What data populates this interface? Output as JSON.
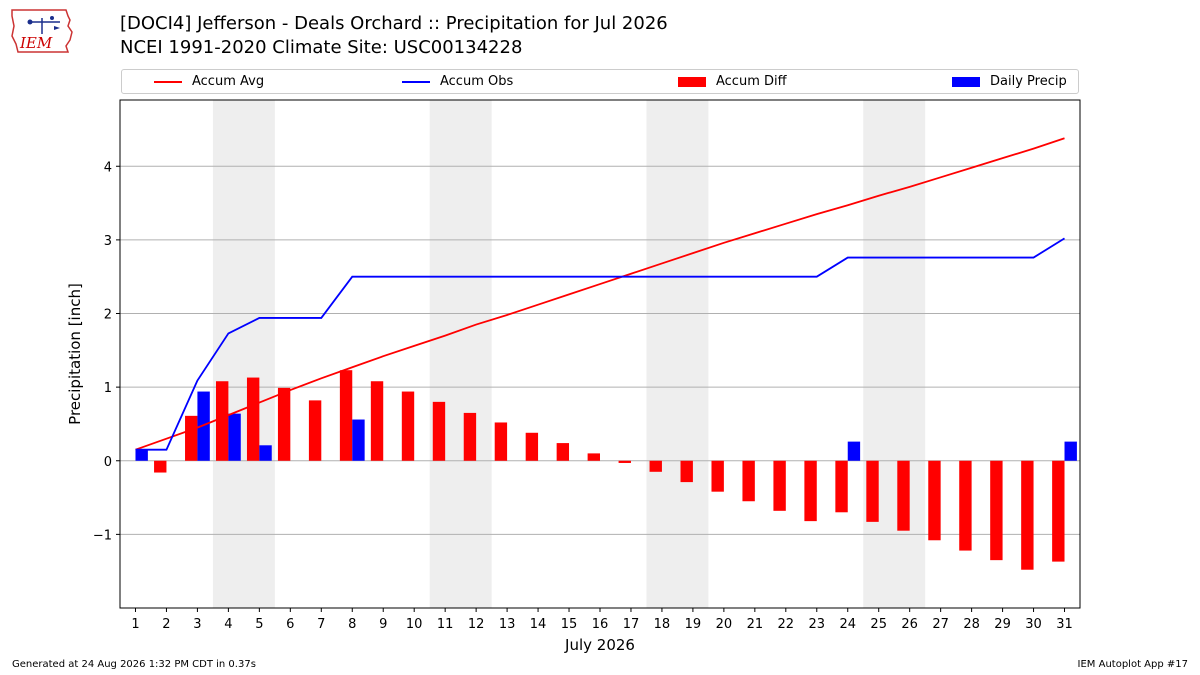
{
  "header": {
    "title_line1": "[DOCI4] Jefferson - Deals Orchard :: Precipitation for Jul 2026",
    "title_line2": "NCEI 1991-2020 Climate Site: USC00134228",
    "logo_text": "IEM"
  },
  "legend": {
    "placement": "top",
    "items": [
      {
        "label": "Accum Avg",
        "kind": "line",
        "color": "#ff0000"
      },
      {
        "label": "Accum Obs",
        "kind": "line",
        "color": "#0000ff"
      },
      {
        "label": "Accum Diff",
        "kind": "bar",
        "color": "#ff0000"
      },
      {
        "label": "Daily Precip",
        "kind": "bar",
        "color": "#0000ff"
      }
    ]
  },
  "chart_data": {
    "type": "bar",
    "xlabel": "July 2026",
    "ylabel": "Precipitation [inch]",
    "x": [
      1,
      2,
      3,
      4,
      5,
      6,
      7,
      8,
      9,
      10,
      11,
      12,
      13,
      14,
      15,
      16,
      17,
      18,
      19,
      20,
      21,
      22,
      23,
      24,
      25,
      26,
      27,
      28,
      29,
      30,
      31
    ],
    "xlim": [
      0.5,
      31.5
    ],
    "ylim": [
      -2.0,
      4.9
    ],
    "yticks": [
      -1,
      0,
      1,
      2,
      3,
      4
    ],
    "ytick_labels": [
      "−1",
      "0",
      "1",
      "2",
      "3",
      "4"
    ],
    "grid": true,
    "weekend_bands": [
      [
        3.5,
        5.5
      ],
      [
        10.5,
        12.5
      ],
      [
        17.5,
        19.5
      ],
      [
        24.5,
        26.5
      ]
    ],
    "series": [
      {
        "name": "Accum Avg",
        "type": "line",
        "color": "#ff0000",
        "values": [
          0.15,
          0.3,
          0.45,
          0.62,
          0.79,
          0.96,
          1.12,
          1.27,
          1.42,
          1.56,
          1.7,
          1.85,
          1.98,
          2.12,
          2.26,
          2.4,
          2.54,
          2.68,
          2.82,
          2.96,
          3.09,
          3.22,
          3.35,
          3.47,
          3.6,
          3.72,
          3.85,
          3.98,
          4.11,
          4.24,
          4.38
        ]
      },
      {
        "name": "Accum Obs",
        "type": "line",
        "color": "#0000ff",
        "values": [
          0.15,
          0.15,
          1.09,
          1.73,
          1.94,
          1.94,
          1.94,
          2.5,
          2.5,
          2.5,
          2.5,
          2.5,
          2.5,
          2.5,
          2.5,
          2.5,
          2.5,
          2.5,
          2.5,
          2.5,
          2.5,
          2.5,
          2.5,
          2.76,
          2.76,
          2.76,
          2.76,
          2.76,
          2.76,
          2.76,
          3.02
        ]
      },
      {
        "name": "Accum Diff",
        "type": "bar",
        "color": "#ff0000",
        "values": [
          0.0,
          -0.16,
          0.61,
          1.08,
          1.13,
          0.99,
          0.82,
          1.23,
          1.08,
          0.94,
          0.8,
          0.65,
          0.52,
          0.38,
          0.24,
          0.1,
          -0.03,
          -0.15,
          -0.29,
          -0.42,
          -0.55,
          -0.68,
          -0.82,
          -0.7,
          -0.83,
          -0.95,
          -1.08,
          -1.22,
          -1.35,
          -1.48,
          -1.37
        ]
      },
      {
        "name": "Daily Precip",
        "type": "bar",
        "color": "#0000ff",
        "values": [
          0.15,
          0.0,
          0.94,
          0.64,
          0.21,
          0,
          0,
          0.56,
          0,
          0,
          0,
          0,
          0,
          0,
          0,
          0,
          0,
          0,
          0,
          0,
          0,
          0,
          0,
          0.26,
          0,
          0,
          0,
          0,
          0,
          0,
          0.26
        ]
      }
    ]
  },
  "footer": {
    "left": "Generated at 24 Aug 2026 1:32 PM CDT in 0.37s",
    "right": "IEM Autoplot App #17"
  }
}
